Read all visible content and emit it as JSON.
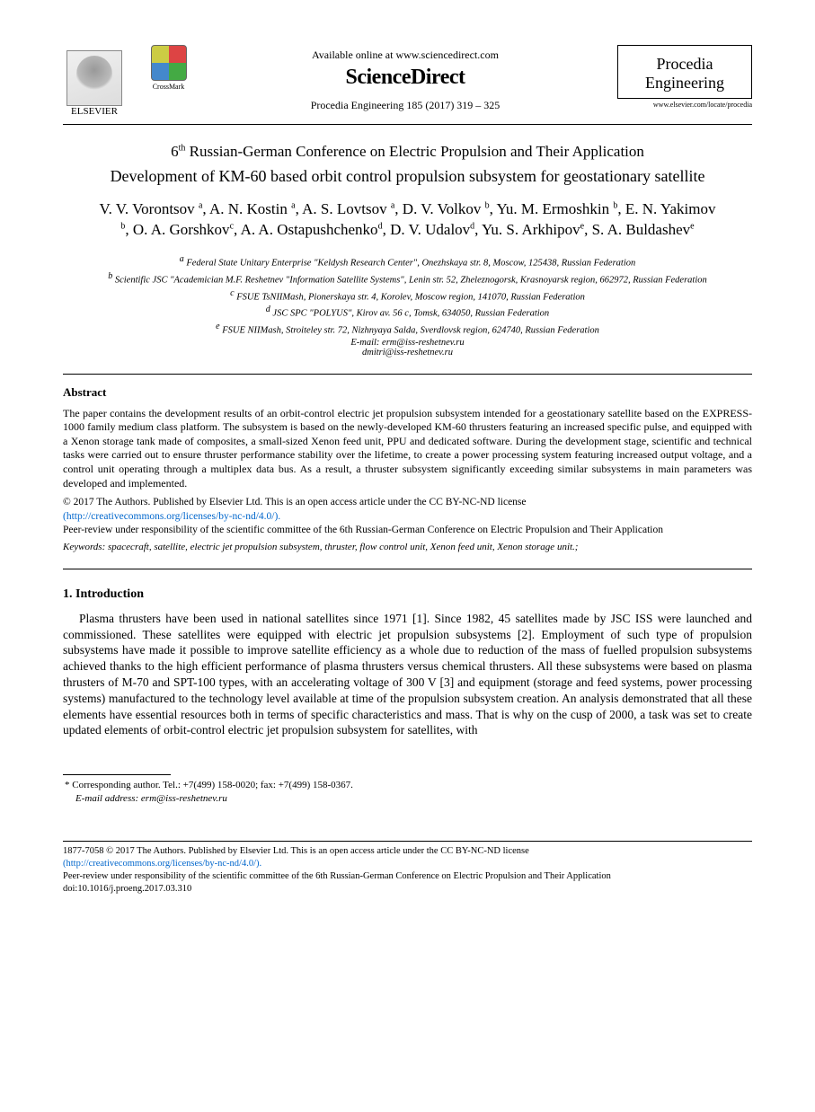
{
  "header": {
    "elsevier_label": "ELSEVIER",
    "crossmark_label": "CrossMark",
    "available_text": "Available online at www.sciencedirect.com",
    "sciencedirect": "ScienceDirect",
    "citation": "Procedia Engineering 185 (2017) 319 – 325",
    "procedia_line1": "Procedia",
    "procedia_line2": "Engineering",
    "locate_url": "www.elsevier.com/locate/procedia"
  },
  "conference": "6th Russian-German Conference on Electric Propulsion and Their Application",
  "title": "Development of KM-60 based orbit control propulsion subsystem for geostationary satellite",
  "authors_html": "V. V. Vorontsov <sup>a</sup>, A. N. Kostin <sup>a</sup>, A. S. Lovtsov <sup>a</sup>, D. V. Volkov <sup>b</sup>, Yu. M. Ermoshkin <sup>b</sup>, E. N. Yakimov <sup>b</sup>, O. A. Gorshkov<sup>c</sup>, A. A. Ostapushchenko<sup>d</sup>, D. V. Udalov<sup>d</sup>, Yu. S. Arkhipov<sup>e</sup>, S. A. Buldashev<sup>e</sup>",
  "affiliations": [
    "a Federal State Unitary Enterprise \"Keldysh Research Center\", Onezhskaya str. 8, Moscow, 125438, Russian Federation",
    "b Scientific JSC \"Academician M.F. Reshetnev \"Information Satellite Systems\", Lenin str. 52, Zheleznogorsk, Krasnoyarsk region, 662972, Russian Federation",
    "c FSUE TsNIIMash, Pionerskaya str. 4, Korolev, Moscow region, 141070, Russian Federation",
    "d JSC SPC \"POLYUS\", Kirov av. 56 c, Tomsk, 634050, Russian Federation",
    "e FSUE NIIMash, Stroiteley str. 72, Nizhnyaya Salda, Sverdlovsk region, 624740, Russian Federation"
  ],
  "emails": [
    "E-mail: erm@iss-reshetnev.ru",
    "dmitri@iss-reshetnev.ru"
  ],
  "abstract": {
    "heading": "Abstract",
    "body": "The paper contains the development results of an orbit-control electric jet propulsion subsystem intended for a geostationary satellite based on the EXPRESS-1000 family medium class platform. The subsystem is based on the newly-developed KM-60 thrusters featuring an increased specific pulse, and equipped with a Xenon storage tank made of composites, a small-sized Xenon feed unit, PPU and dedicated software. During the development stage, scientific and technical tasks were carried out to ensure thruster performance stability over the lifetime, to create a power processing system featuring increased output voltage, and a control unit operating through a multiplex data bus. As a result, a thruster subsystem significantly exceeding similar subsystems in main parameters was developed and implemented."
  },
  "copyright": {
    "line1": "© 2017 The Authors. Published by Elsevier Ltd. This is an open access article under the CC BY-NC-ND license",
    "license_url": "(http://creativecommons.org/licenses/by-nc-nd/4.0/).",
    "peer_review": "Peer-review under responsibility of the scientific committee of the 6th Russian-German Conference on Electric Propulsion and Their Application"
  },
  "keywords": {
    "label": "Keywords:",
    "text": " spacecraft, satellite, electric jet propulsion subsystem, thruster, flow control unit, Xenon feed unit, Xenon storage unit.;"
  },
  "section1": {
    "heading": "1. Introduction",
    "body": "Plasma thrusters have been used in national satellites since 1971 [1]. Since 1982, 45 satellites made by JSC ISS were launched and commissioned. These satellites were equipped with electric jet propulsion subsystems [2]. Employment of such type of propulsion subsystems have made it possible to improve satellite efficiency as a whole due to reduction of the mass of fuelled propulsion subsystems achieved thanks to the high efficient performance of plasma thrusters versus chemical thrusters. All these subsystems were based on plasma thrusters of M-70 and SPT-100 types, with an accelerating voltage of 300 V [3] and equipment (storage and feed systems, power processing systems) manufactured to the technology level available at time of the propulsion subsystem creation. An analysis demonstrated that all these elements have essential resources both in terms of specific characteristics and mass. That is why on the cusp of 2000, a task was set to create updated elements of orbit-control electric jet propulsion subsystem for satellites, with"
  },
  "footnote": {
    "corresponding": "* Corresponding author. Tel.: +7(499) 158-0020; fax: +7(499) 158-0367.",
    "email_label": "E-mail address:",
    "email": " erm@iss-reshetnev.ru"
  },
  "bottom": {
    "line1": "1877-7058 © 2017 The Authors. Published by Elsevier Ltd. This is an open access article under the CC BY-NC-ND license",
    "license_url": "(http://creativecommons.org/licenses/by-nc-nd/4.0/).",
    "peer_review": "Peer-review under responsibility of the scientific committee of the 6th Russian-German Conference on Electric Propulsion and Their Application",
    "doi": "doi:10.1016/j.proeng.2017.03.310"
  },
  "colors": {
    "text": "#000000",
    "link": "#0066cc",
    "background": "#ffffff"
  },
  "typography": {
    "body_font": "Times New Roman",
    "title_size_pt": 18,
    "authors_size_pt": 17,
    "affil_size_pt": 10.5,
    "abstract_size_pt": 12,
    "section_body_pt": 13.5
  }
}
